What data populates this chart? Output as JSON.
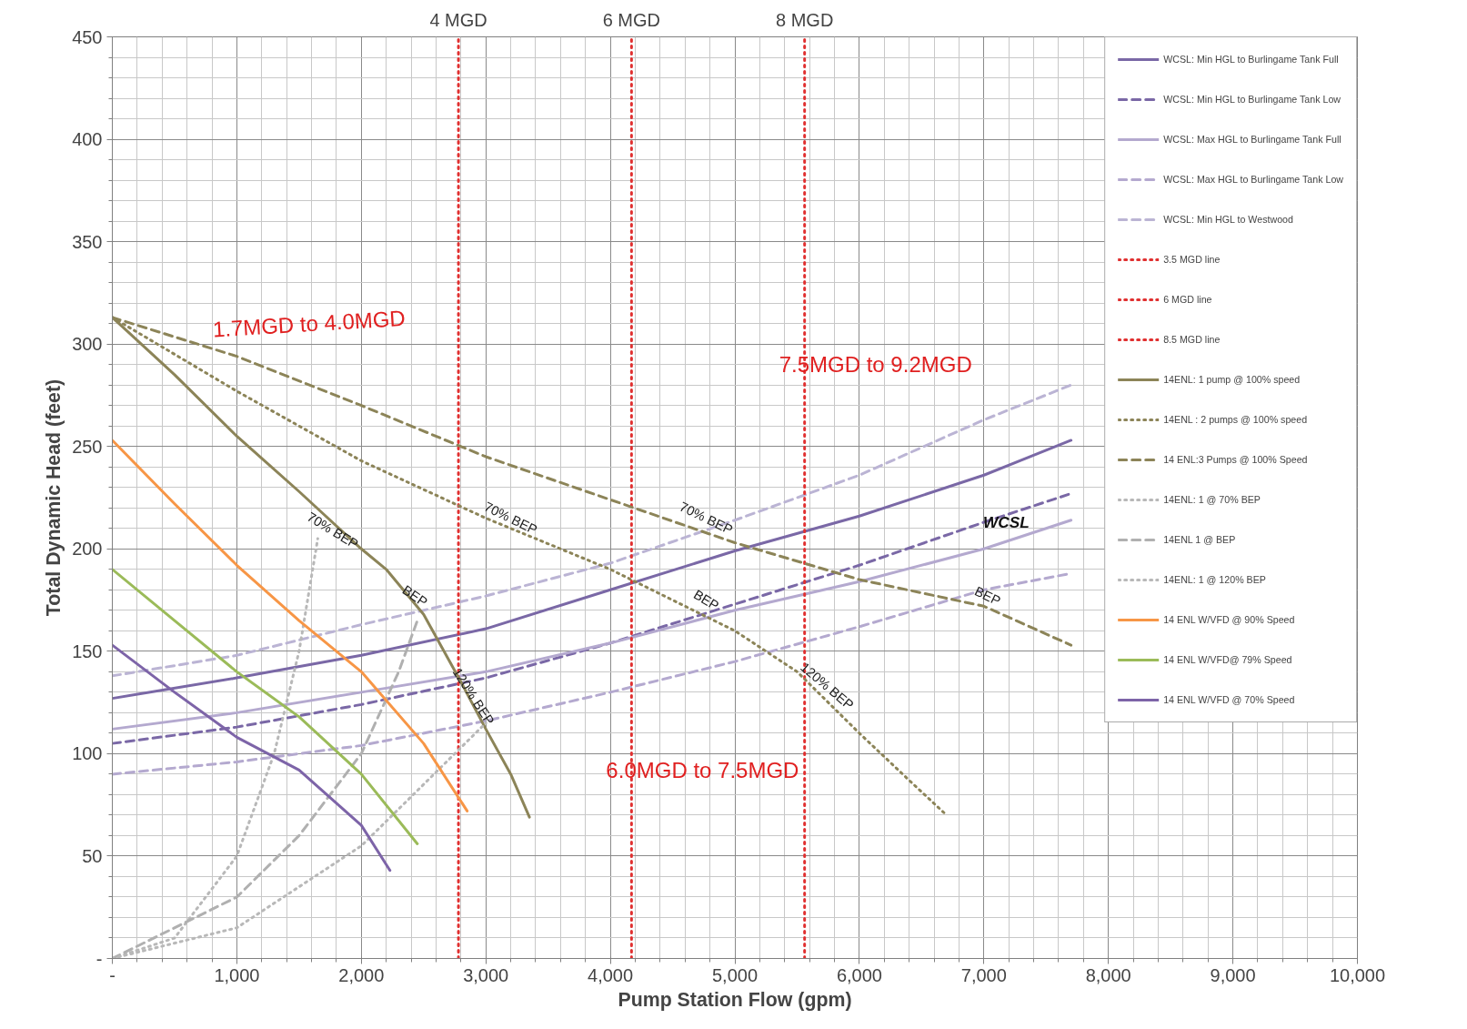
{
  "chart_data": {
    "type": "line",
    "xlabel": "Pump Station Flow (gpm)",
    "ylabel": "Total Dynamic Head (feet)",
    "xlim": [
      0,
      10000
    ],
    "ylim": [
      0,
      450
    ],
    "xticks": [
      {
        "value": 0,
        "label": "-"
      },
      {
        "value": 1000,
        "label": "1,000"
      },
      {
        "value": 2000,
        "label": "2,000"
      },
      {
        "value": 3000,
        "label": "3,000"
      },
      {
        "value": 4000,
        "label": "4,000"
      },
      {
        "value": 5000,
        "label": "5,000"
      },
      {
        "value": 6000,
        "label": "6,000"
      },
      {
        "value": 7000,
        "label": "7,000"
      },
      {
        "value": 8000,
        "label": "8,000"
      },
      {
        "value": 9000,
        "label": "9,000"
      },
      {
        "value": 10000,
        "label": "10,000"
      }
    ],
    "yticks": [
      {
        "value": 0,
        "label": "-"
      },
      50,
      100,
      150,
      200,
      250,
      300,
      350,
      400,
      450
    ],
    "grid": true,
    "legend": "top right",
    "marker": "none",
    "series": [
      {
        "name": "WCSL: Min HGL to Burlingame Tank Full",
        "color": "#7a68a6",
        "line_style": "solid",
        "x": [
          0,
          1000,
          2000,
          3000,
          4000,
          5000,
          6000,
          7000,
          7700
        ],
        "values": [
          127,
          137,
          148,
          161,
          180,
          199,
          216,
          236,
          253
        ]
      },
      {
        "name": "WCSL: Min HGL to Burlingame Tank Low",
        "color": "#7a68a6",
        "line_style": "dashed",
        "x": [
          0,
          1000,
          2000,
          3000,
          4000,
          5000,
          6000,
          7000,
          7700
        ],
        "values": [
          105,
          113,
          124,
          137,
          154,
          173,
          192,
          213,
          227
        ]
      },
      {
        "name": "WCSL: Max HGL to Burlingame Tank Full",
        "color": "#b4a9cf",
        "line_style": "solid",
        "x": [
          0,
          1000,
          2000,
          3000,
          4000,
          5000,
          6000,
          7000,
          7700
        ],
        "values": [
          112,
          120,
          130,
          140,
          154,
          170,
          184,
          200,
          214
        ]
      },
      {
        "name": "WCSL: Max HGL to Burlingame Tank Low",
        "color": "#b4a9cf",
        "line_style": "dashed",
        "x": [
          0,
          1000,
          2000,
          3000,
          4000,
          5000,
          6000,
          7000,
          7700
        ],
        "values": [
          90,
          96,
          104,
          116,
          130,
          145,
          162,
          180,
          188
        ]
      },
      {
        "name": "WCSL: Min HGL to Westwood",
        "color": "#bbb4d4",
        "line_style": "dashed",
        "x": [
          0,
          1000,
          2000,
          3000,
          4000,
          5000,
          6000,
          7000,
          7700
        ],
        "values": [
          138,
          148,
          163,
          177,
          193,
          214,
          236,
          263,
          280
        ]
      },
      {
        "name": "3.5 MGD line",
        "color": "#e03030",
        "line_style": "dotted",
        "x": [
          2780,
          2780
        ],
        "values": [
          0,
          450
        ]
      },
      {
        "name": "6 MGD line",
        "color": "#e03030",
        "line_style": "dotted",
        "x": [
          4170,
          4170
        ],
        "values": [
          0,
          450
        ]
      },
      {
        "name": "8.5 MGD line",
        "color": "#e03030",
        "line_style": "dotted",
        "x": [
          5560,
          5560
        ],
        "values": [
          0,
          450
        ]
      },
      {
        "name": "14ENL: 1 pump @ 100% speed",
        "color": "#8c8458",
        "line_style": "solid",
        "x": [
          0,
          500,
          1000,
          1500,
          2000,
          2200,
          2500,
          2800,
          3000,
          3200,
          3350
        ],
        "values": [
          313,
          285,
          255,
          228,
          200,
          190,
          168,
          135,
          112,
          90,
          69
        ]
      },
      {
        "name": "14ENL : 2 pumps @ 100% speed",
        "color": "#8c8458",
        "line_style": "dotted",
        "x": [
          0,
          1000,
          2000,
          3000,
          4000,
          4500,
          5000,
          5500,
          6000,
          6400,
          6700
        ],
        "values": [
          313,
          277,
          243,
          215,
          190,
          175,
          160,
          140,
          110,
          87,
          70
        ]
      },
      {
        "name": "14 ENL:3 Pumps @ 100% Speed",
        "color": "#8c8458",
        "line_style": "dashed",
        "x": [
          0,
          1000,
          2000,
          3000,
          4000,
          5000,
          6000,
          7000,
          7700
        ],
        "values": [
          313,
          294,
          270,
          245,
          224,
          203,
          185,
          172,
          153
        ]
      },
      {
        "name": "14ENL: 1 @ 70% BEP",
        "color": "#b8b8b8",
        "line_style": "dotted",
        "x": [
          0,
          500,
          1000,
          1300,
          1500,
          1650
        ],
        "values": [
          0,
          10,
          50,
          100,
          150,
          205
        ]
      },
      {
        "name": "14ENL 1 @ BEP",
        "color": "#b0b0b0",
        "line_style": "dashed",
        "x": [
          0,
          1000,
          1500,
          2000,
          2300,
          2450
        ],
        "values": [
          0,
          30,
          60,
          100,
          140,
          165
        ]
      },
      {
        "name": "14ENL: 1 @ 120% BEP",
        "color": "#b8b8b8",
        "line_style": "dotted",
        "x": [
          0,
          1000,
          2000,
          2500,
          3000
        ],
        "values": [
          0,
          15,
          55,
          85,
          115
        ]
      },
      {
        "name": "14 ENL W/VFD @ 90% Speed",
        "color": "#f79646",
        "line_style": "solid",
        "x": [
          0,
          500,
          1000,
          1500,
          2000,
          2500,
          2850
        ],
        "values": [
          253,
          222,
          192,
          165,
          140,
          105,
          72
        ]
      },
      {
        "name": "14 ENL W/VFD@ 79% Speed",
        "color": "#9bbb59",
        "line_style": "solid",
        "x": [
          0,
          500,
          1000,
          1500,
          2000,
          2450
        ],
        "values": [
          190,
          165,
          140,
          118,
          90,
          56
        ]
      },
      {
        "name": "14 ENL W/VFD @ 70% Speed",
        "color": "#7d64a8",
        "line_style": "solid",
        "x": [
          0,
          500,
          1000,
          1500,
          2000,
          2230
        ],
        "values": [
          153,
          130,
          108,
          92,
          65,
          43
        ]
      }
    ],
    "annotations": [
      "1.7MGD to 4.0MGD",
      "7.5MGD to 9.2MGD",
      "6.0MGD to 7.5MGD",
      "4 MGD",
      "6 MGD",
      "8 MGD",
      "WCSL",
      "70% BEP",
      "70% BEP",
      "70% BEP",
      "BEP",
      "BEP",
      "BEP",
      "120% BEP",
      "120% BEP"
    ]
  }
}
